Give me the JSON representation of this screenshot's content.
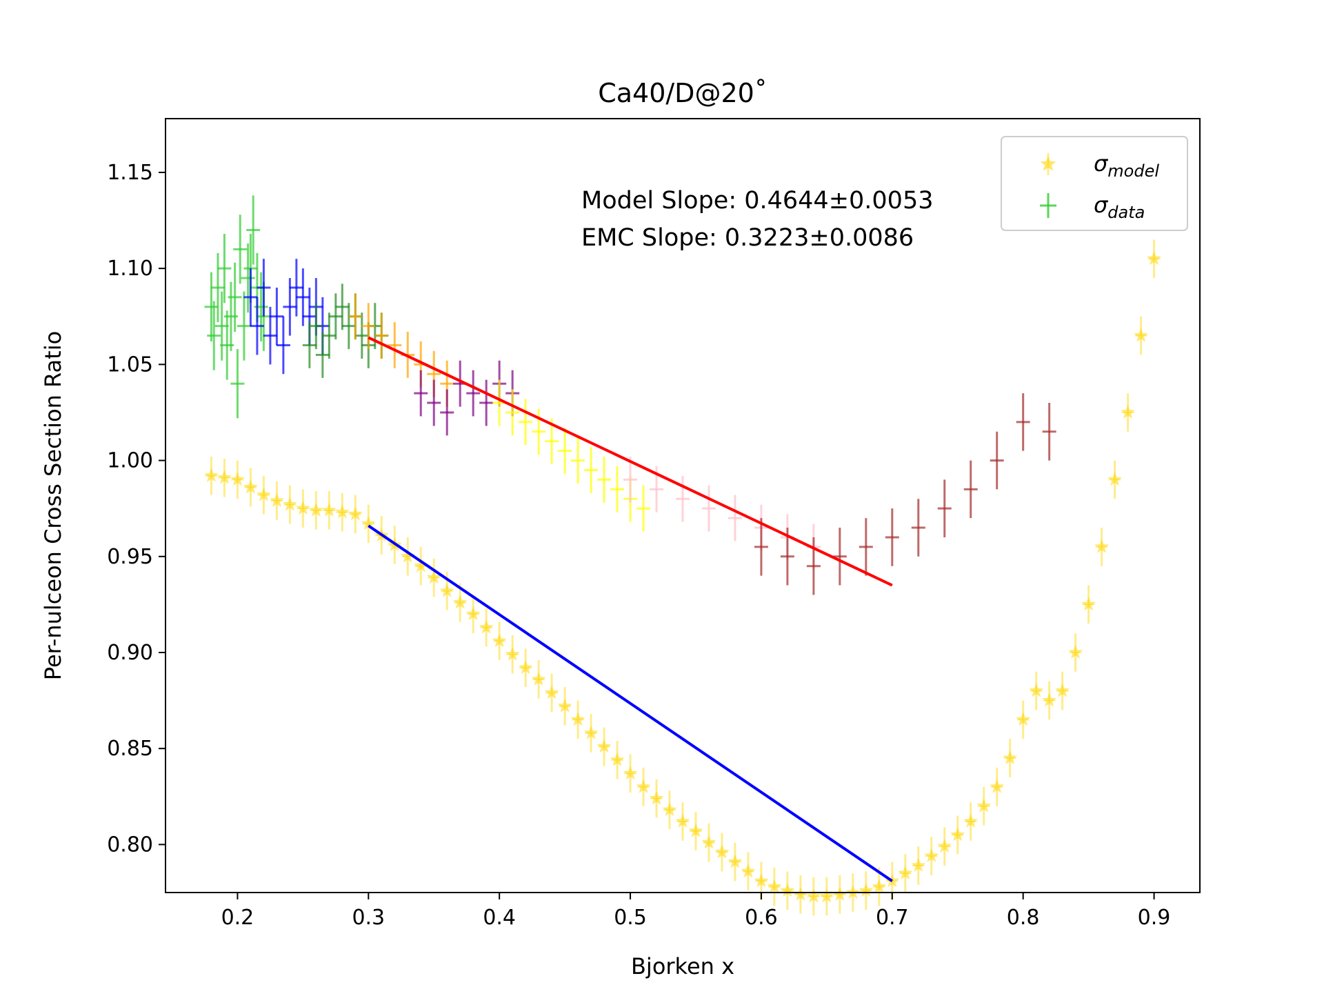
{
  "chart_data": {
    "type": "scatter",
    "title": "Ca40/D@20˚",
    "xlabel": "Bjorken x",
    "ylabel": "Per-nulceon Cross Section Ratio",
    "xlim": [
      0.145,
      0.935
    ],
    "ylim": [
      0.775,
      1.178
    ],
    "x_ticks": [
      0.2,
      0.3,
      0.4,
      0.5,
      0.6,
      0.7,
      0.8,
      0.9
    ],
    "x_tick_labels": [
      "0.2",
      "0.3",
      "0.4",
      "0.5",
      "0.6",
      "0.7",
      "0.8",
      "0.9"
    ],
    "y_ticks": [
      0.8,
      0.85,
      0.9,
      0.95,
      1.0,
      1.05,
      1.1,
      1.15
    ],
    "y_tick_labels": [
      "0.80",
      "0.85",
      "0.90",
      "0.95",
      "1.00",
      "1.05",
      "1.10",
      "1.15"
    ],
    "grid": false,
    "legend": {
      "placement": "top-right",
      "entries": [
        {
          "label": "σ",
          "sub": "model",
          "marker": "star",
          "color": "#FFD700"
        },
        {
          "label": "σ",
          "sub": "data",
          "marker": "plus",
          "color": "#32CD32"
        }
      ]
    },
    "annotations": [
      "Model Slope: 0.4644±0.0053",
      "EMC Slope: 0.3223±0.0086"
    ],
    "model_series": {
      "marker": "star",
      "color": "#FFD700",
      "x": [
        0.18,
        0.19,
        0.2,
        0.21,
        0.22,
        0.23,
        0.24,
        0.25,
        0.26,
        0.27,
        0.28,
        0.29,
        0.3,
        0.31,
        0.32,
        0.33,
        0.34,
        0.35,
        0.36,
        0.37,
        0.38,
        0.39,
        0.4,
        0.41,
        0.42,
        0.43,
        0.44,
        0.45,
        0.46,
        0.47,
        0.48,
        0.49,
        0.5,
        0.51,
        0.52,
        0.53,
        0.54,
        0.55,
        0.56,
        0.57,
        0.58,
        0.59,
        0.6,
        0.61,
        0.62,
        0.63,
        0.64,
        0.65,
        0.66,
        0.67,
        0.68,
        0.69,
        0.7,
        0.71,
        0.72,
        0.73,
        0.74,
        0.75,
        0.76,
        0.77,
        0.78,
        0.79,
        0.8,
        0.81,
        0.82,
        0.83,
        0.84,
        0.85,
        0.86,
        0.87,
        0.88,
        0.89,
        0.9
      ],
      "y": [
        0.992,
        0.991,
        0.99,
        0.986,
        0.982,
        0.979,
        0.977,
        0.975,
        0.974,
        0.974,
        0.973,
        0.972,
        0.967,
        0.961,
        0.956,
        0.95,
        0.945,
        0.939,
        0.932,
        0.926,
        0.92,
        0.913,
        0.906,
        0.899,
        0.892,
        0.886,
        0.879,
        0.872,
        0.865,
        0.858,
        0.851,
        0.844,
        0.837,
        0.83,
        0.824,
        0.818,
        0.812,
        0.807,
        0.801,
        0.796,
        0.791,
        0.786,
        0.781,
        0.778,
        0.776,
        0.774,
        0.773,
        0.773,
        0.774,
        0.775,
        0.776,
        0.778,
        0.781,
        0.785,
        0.789,
        0.794,
        0.799,
        0.805,
        0.812,
        0.82,
        0.83,
        0.845,
        0.865,
        0.88,
        0.875,
        0.88,
        0.9,
        0.925,
        0.955,
        0.99,
        1.025,
        1.065,
        1.105
      ],
      "yerr": 0.01
    },
    "fit_lines": [
      {
        "name": "Model Slope",
        "color": "#0000FF",
        "x": [
          0.3,
          0.7
        ],
        "y": [
          0.966,
          0.781
        ]
      },
      {
        "name": "EMC Slope",
        "color": "#FF0000",
        "x": [
          0.3,
          0.7
        ],
        "y": [
          1.064,
          0.935
        ]
      }
    ],
    "data_series": [
      {
        "color": "#32CD32",
        "x": [
          0.18,
          0.182,
          0.185,
          0.188,
          0.19,
          0.192,
          0.195,
          0.198,
          0.2,
          0.202,
          0.205,
          0.208,
          0.21,
          0.212,
          0.215,
          0.218,
          0.22
        ],
        "y": [
          1.08,
          1.065,
          1.09,
          1.07,
          1.1,
          1.06,
          1.075,
          1.085,
          1.04,
          1.11,
          1.07,
          1.095,
          1.1,
          1.12,
          1.09,
          1.08,
          1.075
        ],
        "yerr": 0.018
      },
      {
        "color": "#0000FF",
        "x": [
          0.21,
          0.215,
          0.22,
          0.225,
          0.23,
          0.235,
          0.24,
          0.245,
          0.25,
          0.255,
          0.26,
          0.265
        ],
        "y": [
          1.085,
          1.07,
          1.09,
          1.065,
          1.075,
          1.06,
          1.08,
          1.09,
          1.085,
          1.075,
          1.08,
          1.07
        ],
        "yerr": 0.015
      },
      {
        "color": "#228B22",
        "x": [
          0.255,
          0.26,
          0.265,
          0.27,
          0.275,
          0.28,
          0.285,
          0.29,
          0.295,
          0.3,
          0.305,
          0.31
        ],
        "y": [
          1.06,
          1.07,
          1.055,
          1.065,
          1.075,
          1.08,
          1.07,
          1.075,
          1.065,
          1.06,
          1.07,
          1.065
        ],
        "yerr": 0.012
      },
      {
        "color": "#FFA500",
        "x": [
          0.29,
          0.3,
          0.31,
          0.32,
          0.33,
          0.34,
          0.35,
          0.36
        ],
        "y": [
          1.075,
          1.07,
          1.065,
          1.06,
          1.055,
          1.05,
          1.045,
          1.04
        ],
        "yerr": 0.012
      },
      {
        "color": "#800080",
        "x": [
          0.34,
          0.35,
          0.36,
          0.37,
          0.38,
          0.39,
          0.4,
          0.41
        ],
        "y": [
          1.035,
          1.03,
          1.025,
          1.04,
          1.035,
          1.03,
          1.04,
          1.035
        ],
        "yerr": 0.012
      },
      {
        "color": "#FFFF00",
        "x": [
          0.4,
          0.41,
          0.42,
          0.43,
          0.44,
          0.45,
          0.46,
          0.47,
          0.48,
          0.49,
          0.5,
          0.51
        ],
        "y": [
          1.03,
          1.025,
          1.02,
          1.015,
          1.01,
          1.005,
          1.0,
          0.995,
          0.99,
          0.985,
          0.98,
          0.975
        ],
        "yerr": 0.012
      },
      {
        "color": "#FFC0CB",
        "x": [
          0.5,
          0.52,
          0.54,
          0.56,
          0.58,
          0.6,
          0.62,
          0.64
        ],
        "y": [
          0.99,
          0.985,
          0.98,
          0.975,
          0.97,
          0.965,
          0.96,
          0.955
        ],
        "yerr": 0.012
      },
      {
        "color": "#A52A2A",
        "x": [
          0.6,
          0.62,
          0.64,
          0.66,
          0.68,
          0.7,
          0.72,
          0.74,
          0.76,
          0.78,
          0.8,
          0.82
        ],
        "y": [
          0.955,
          0.95,
          0.945,
          0.95,
          0.955,
          0.96,
          0.965,
          0.975,
          0.985,
          1.0,
          1.02,
          1.015
        ],
        "yerr": 0.015
      }
    ]
  }
}
